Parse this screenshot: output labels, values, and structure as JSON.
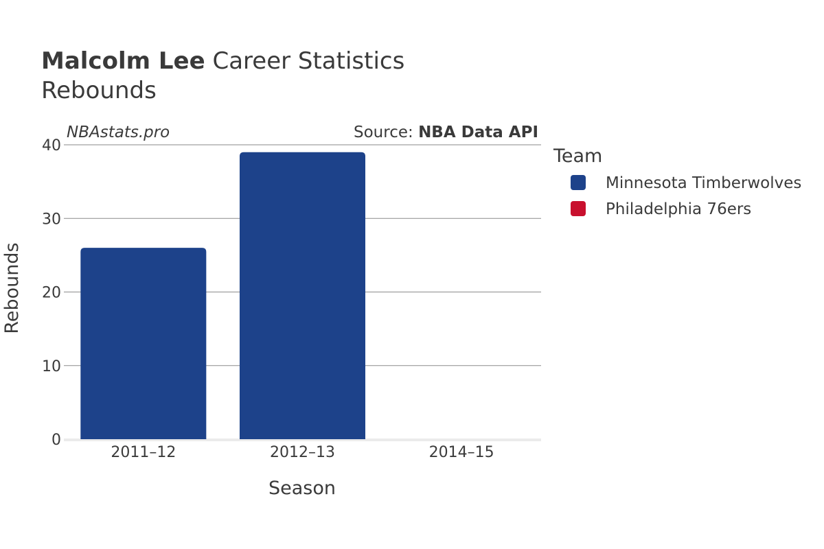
{
  "header": {
    "title_bold": "Malcolm Lee",
    "title_rest": " Career Statistics",
    "subtitle": "Rebounds"
  },
  "watermark": "NBAstats.pro",
  "source": {
    "prefix": "Source: ",
    "name": "NBA Data API"
  },
  "legend": {
    "title": "Team",
    "items": [
      {
        "label": "Minnesota Timberwolves",
        "color": "#1d428a"
      },
      {
        "label": "Philadelphia 76ers",
        "color": "#c8102e"
      }
    ]
  },
  "chart_data": {
    "type": "bar",
    "title": "Malcolm Lee Career Statistics",
    "subtitle": "Rebounds",
    "xlabel": "Season",
    "ylabel": "Rebounds",
    "categories": [
      "2011–12",
      "2012–13",
      "2014–15"
    ],
    "series": [
      {
        "name": "Minnesota Timberwolves",
        "color": "#1d428a",
        "values": [
          26,
          39,
          0
        ]
      },
      {
        "name": "Philadelphia 76ers",
        "color": "#c8102e",
        "values": [
          0,
          0,
          0
        ]
      }
    ],
    "ylim": [
      0,
      40
    ],
    "yticks": [
      0,
      10,
      20,
      30,
      40
    ],
    "grid": true,
    "legend_position": "right"
  }
}
